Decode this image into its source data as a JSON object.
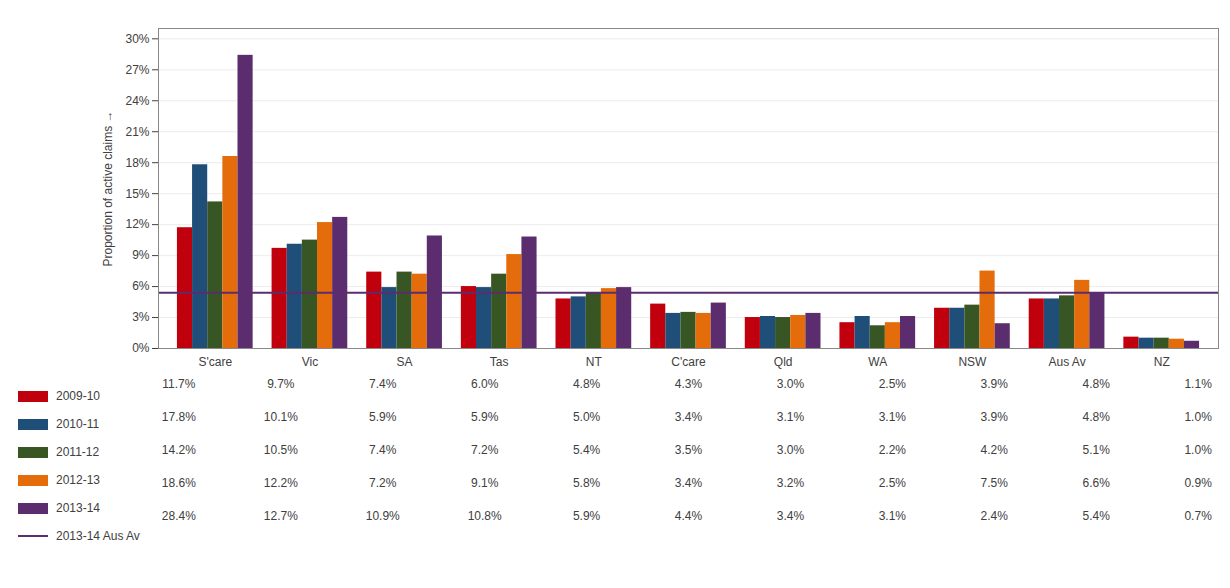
{
  "chart_data": {
    "type": "bar",
    "categories": [
      "S'care",
      "Vic",
      "SA",
      "Tas",
      "NT",
      "C'care",
      "Qld",
      "WA",
      "NSW",
      "Aus Av",
      "NZ"
    ],
    "series": [
      {
        "name": "2009-10",
        "color": "#c0000c",
        "values": [
          11.7,
          9.7,
          7.4,
          6.0,
          4.8,
          4.3,
          3.0,
          2.5,
          3.9,
          4.8,
          1.1
        ],
        "value_labels": [
          "11.7%",
          "9.7%",
          "7.4%",
          "6.0%",
          "4.8%",
          "4.3%",
          "3.0%",
          "2.5%",
          "3.9%",
          "4.8%",
          "1.1%"
        ]
      },
      {
        "name": "2010-11",
        "color": "#1f4e79",
        "values": [
          17.8,
          10.1,
          5.9,
          5.9,
          5.0,
          3.4,
          3.1,
          3.1,
          3.9,
          4.8,
          1.0
        ],
        "value_labels": [
          "17.8%",
          "10.1%",
          "5.9%",
          "5.9%",
          "5.0%",
          "3.4%",
          "3.1%",
          "3.1%",
          "3.9%",
          "4.8%",
          "1.0%"
        ]
      },
      {
        "name": "2011-12",
        "color": "#375623",
        "values": [
          14.2,
          10.5,
          7.4,
          7.2,
          5.4,
          3.5,
          3.0,
          2.2,
          4.2,
          5.1,
          1.0
        ],
        "value_labels": [
          "14.2%",
          "10.5%",
          "7.4%",
          "7.2%",
          "5.4%",
          "3.5%",
          "3.0%",
          "2.2%",
          "4.2%",
          "5.1%",
          "1.0%"
        ]
      },
      {
        "name": "2012-13",
        "color": "#e46c0a",
        "values": [
          18.6,
          12.2,
          7.2,
          9.1,
          5.8,
          3.4,
          3.2,
          2.5,
          7.5,
          6.6,
          0.9
        ],
        "value_labels": [
          "18.6%",
          "12.2%",
          "7.2%",
          "9.1%",
          "5.8%",
          "3.4%",
          "3.2%",
          "2.5%",
          "7.5%",
          "6.6%",
          "0.9%"
        ]
      },
      {
        "name": "2013-14",
        "color": "#5c2d6e",
        "values": [
          28.4,
          12.7,
          10.9,
          10.8,
          5.9,
          4.4,
          3.4,
          3.1,
          2.4,
          5.4,
          0.7
        ],
        "value_labels": [
          "28.4%",
          "12.7%",
          "10.9%",
          "10.8%",
          "5.9%",
          "4.4%",
          "3.4%",
          "3.1%",
          "2.4%",
          "5.4%",
          "0.7%"
        ]
      },
      {
        "name": "2013-14 Aus Av",
        "type": "rule",
        "color": "#5c2d6e",
        "value": 5.4
      }
    ],
    "ylabel": "Proportion of active claims",
    "ylim": [
      0,
      31
    ],
    "yticks": [
      {
        "value": 0,
        "label": "0%"
      },
      {
        "value": 3,
        "label": "3%"
      },
      {
        "value": 6,
        "label": "6%"
      },
      {
        "value": 9,
        "label": "9%"
      },
      {
        "value": 12,
        "label": "12%"
      },
      {
        "value": 15,
        "label": "15%"
      },
      {
        "value": 18,
        "label": "18%"
      },
      {
        "value": 21,
        "label": "21%"
      },
      {
        "value": 24,
        "label": "24%"
      },
      {
        "value": 27,
        "label": "27%"
      },
      {
        "value": 30,
        "label": "30%"
      }
    ],
    "grid": true,
    "legend": "bottom",
    "data_labels": true
  }
}
